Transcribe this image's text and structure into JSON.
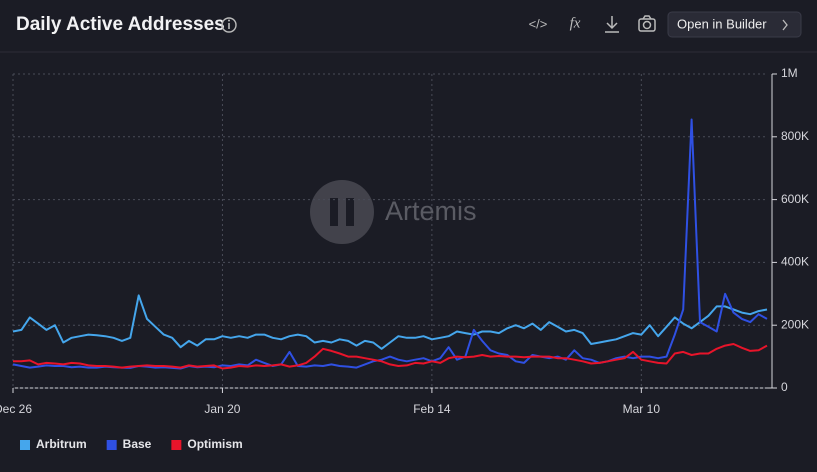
{
  "toolbar": {
    "code": "</>",
    "formula": "fx",
    "button": "Open in Builder"
  },
  "chart_data": {
    "type": "line",
    "title": "Daily Active Addresses",
    "watermark": "Artemis",
    "categories": [
      "Dec 26",
      null,
      null,
      null,
      null,
      null,
      null,
      null,
      null,
      null,
      null,
      null,
      null,
      null,
      null,
      null,
      null,
      null,
      null,
      null,
      null,
      null,
      null,
      null,
      null,
      "Jan 20",
      null,
      null,
      null,
      null,
      null,
      null,
      null,
      null,
      null,
      null,
      null,
      null,
      null,
      null,
      null,
      null,
      null,
      null,
      null,
      null,
      null,
      null,
      null,
      null,
      "Feb 14",
      null,
      null,
      null,
      null,
      null,
      null,
      null,
      null,
      null,
      null,
      null,
      null,
      null,
      null,
      null,
      null,
      null,
      null,
      null,
      null,
      null,
      null,
      null,
      null,
      "Mar 10",
      null,
      null,
      null,
      null,
      null,
      null,
      null,
      null,
      null,
      null,
      null,
      null,
      null,
      null,
      null
    ],
    "series": [
      {
        "name": "Arbitrum",
        "color": "#45a6ec",
        "values": [
          180000,
          185000,
          225000,
          205000,
          185000,
          200000,
          145000,
          160000,
          165000,
          170000,
          168000,
          165000,
          160000,
          150000,
          160000,
          295000,
          220000,
          195000,
          170000,
          160000,
          130000,
          150000,
          135000,
          155000,
          155000,
          165000,
          160000,
          165000,
          160000,
          170000,
          170000,
          160000,
          155000,
          165000,
          170000,
          165000,
          145000,
          150000,
          145000,
          155000,
          150000,
          135000,
          150000,
          145000,
          125000,
          145000,
          165000,
          160000,
          160000,
          165000,
          155000,
          160000,
          165000,
          180000,
          175000,
          170000,
          180000,
          180000,
          175000,
          190000,
          200000,
          190000,
          205000,
          185000,
          210000,
          195000,
          180000,
          185000,
          175000,
          140000,
          145000,
          150000,
          155000,
          165000,
          175000,
          170000,
          200000,
          165000,
          195000,
          225000,
          205000,
          190000,
          210000,
          230000,
          260000,
          260000,
          250000,
          240000,
          235000,
          245000,
          250000
        ]
      },
      {
        "name": "Base",
        "color": "#2f50e3",
        "values": [
          75000,
          70000,
          65000,
          68000,
          72000,
          70000,
          70000,
          66000,
          68000,
          65000,
          65000,
          68000,
          66000,
          65000,
          64000,
          70000,
          68000,
          65000,
          66000,
          64000,
          62000,
          70000,
          66000,
          68000,
          66000,
          72000,
          70000,
          75000,
          72000,
          90000,
          80000,
          70000,
          75000,
          115000,
          70000,
          68000,
          72000,
          70000,
          75000,
          70000,
          68000,
          65000,
          75000,
          85000,
          90000,
          100000,
          90000,
          85000,
          90000,
          95000,
          85000,
          95000,
          130000,
          90000,
          100000,
          185000,
          150000,
          120000,
          110000,
          105000,
          85000,
          80000,
          105000,
          100000,
          95000,
          100000,
          90000,
          120000,
          95000,
          90000,
          80000,
          85000,
          95000,
          100000,
          95000,
          100000,
          100000,
          95000,
          100000,
          170000,
          250000,
          855000,
          210000,
          195000,
          180000,
          300000,
          240000,
          220000,
          210000,
          235000,
          220000
        ]
      },
      {
        "name": "Optimism",
        "color": "#e8142a",
        "values": [
          85000,
          85000,
          88000,
          75000,
          80000,
          78000,
          75000,
          80000,
          78000,
          72000,
          70000,
          70000,
          68000,
          65000,
          68000,
          70000,
          72000,
          70000,
          70000,
          68000,
          65000,
          72000,
          68000,
          70000,
          72000,
          62000,
          65000,
          70000,
          68000,
          72000,
          70000,
          72000,
          75000,
          68000,
          72000,
          80000,
          100000,
          125000,
          118000,
          110000,
          100000,
          100000,
          95000,
          90000,
          85000,
          75000,
          70000,
          72000,
          80000,
          78000,
          85000,
          80000,
          95000,
          100000,
          98000,
          100000,
          105000,
          100000,
          102000,
          100000,
          100000,
          98000,
          100000,
          100000,
          100000,
          95000,
          95000,
          90000,
          85000,
          78000,
          80000,
          85000,
          90000,
          95000,
          115000,
          90000,
          85000,
          80000,
          78000,
          110000,
          115000,
          105000,
          110000,
          110000,
          125000,
          135000,
          140000,
          128000,
          118000,
          120000,
          135000
        ]
      }
    ],
    "ylim": [
      0,
      1000000
    ],
    "yticks": [
      0,
      {
        "value": 200000,
        "label": "200K"
      },
      {
        "value": 400000,
        "label": "400K"
      },
      {
        "value": 600000,
        "label": "600K"
      },
      {
        "value": 800000,
        "label": "800K"
      },
      {
        "value": 1000000,
        "label": "1M"
      }
    ],
    "grid": true,
    "legend": "bottom-left"
  }
}
